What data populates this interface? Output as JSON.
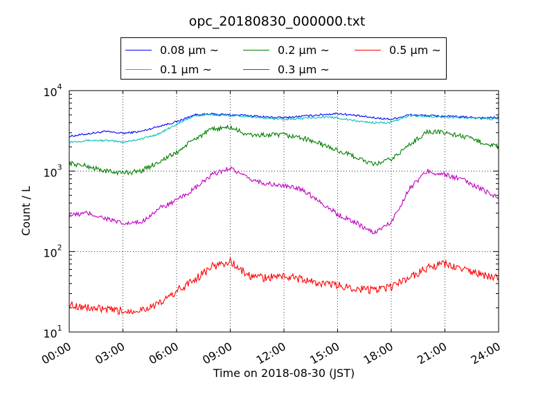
{
  "chart_data": {
    "type": "line",
    "title": "opc_20180830_000000.txt",
    "xlabel": "Time on 2018-08-30 (JST)",
    "ylabel": "Count / L",
    "yscale": "log",
    "ylim": [
      10,
      10000
    ],
    "xlim": [
      "00:00",
      "24:00"
    ],
    "x_ticks": [
      "00:00",
      "03:00",
      "06:00",
      "09:00",
      "12:00",
      "15:00",
      "18:00",
      "21:00",
      "24:00"
    ],
    "y_ticks": [
      {
        "base": "10",
        "exp": "1"
      },
      {
        "base": "10",
        "exp": "2"
      },
      {
        "base": "10",
        "exp": "3"
      },
      {
        "base": "10",
        "exp": "4"
      }
    ],
    "grid": true,
    "legend_position": "top",
    "x": [
      "00:00",
      "01:00",
      "02:00",
      "03:00",
      "04:00",
      "05:00",
      "06:00",
      "07:00",
      "08:00",
      "09:00",
      "10:00",
      "11:00",
      "12:00",
      "13:00",
      "14:00",
      "15:00",
      "16:00",
      "17:00",
      "18:00",
      "19:00",
      "20:00",
      "21:00",
      "22:00",
      "23:00",
      "24:00"
    ],
    "series": [
      {
        "name": "0.08 μm ~",
        "color": "#0000ff",
        "values": [
          2700,
          2900,
          3100,
          2950,
          3100,
          3600,
          4100,
          5000,
          5100,
          5000,
          4900,
          4700,
          4600,
          4800,
          5000,
          5200,
          4900,
          4600,
          4400,
          5000,
          4900,
          4800,
          4700,
          4600,
          4600
        ]
      },
      {
        "name": "0.1 μm ~",
        "color": "#00bfbf",
        "values": [
          2300,
          2400,
          2400,
          2300,
          2500,
          2900,
          3800,
          4900,
          5000,
          4900,
          4800,
          4500,
          4400,
          4500,
          4700,
          4600,
          4200,
          4000,
          4000,
          4900,
          4800,
          4700,
          4600,
          4500,
          4400
        ]
      },
      {
        "name": "0.2 μm ~",
        "color": "#008000",
        "values": [
          1250,
          1150,
          1000,
          950,
          1000,
          1300,
          1700,
          2500,
          3300,
          3500,
          2800,
          2800,
          2800,
          2600,
          2200,
          1800,
          1500,
          1200,
          1400,
          2100,
          3100,
          3000,
          2700,
          2300,
          2000
        ]
      },
      {
        "name": "0.3 μm ~",
        "color": "#bf00bf",
        "values": [
          280,
          300,
          260,
          220,
          230,
          340,
          430,
          600,
          900,
          1100,
          800,
          700,
          650,
          600,
          420,
          290,
          230,
          170,
          230,
          600,
          1000,
          900,
          780,
          600,
          470
        ]
      },
      {
        "name": "0.5 μm ~",
        "color": "#ff0000",
        "values": [
          22,
          20,
          19,
          18,
          19,
          22,
          32,
          45,
          65,
          75,
          50,
          47,
          50,
          45,
          40,
          38,
          35,
          33,
          36,
          48,
          62,
          70,
          60,
          52,
          46
        ]
      }
    ]
  }
}
